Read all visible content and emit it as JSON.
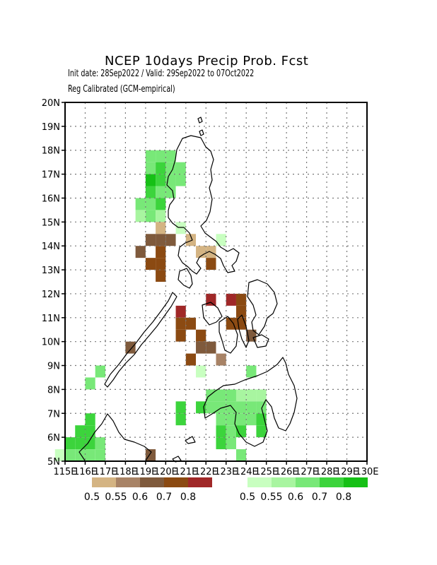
{
  "header": {
    "title": "NCEP 10days Precip Prob. Fcst",
    "line1": "Init date: 28Sep2022 / Valid: 29Sep2022 to 07Oct2022",
    "line2": "Reg Calibrated (GCM-empirical)"
  },
  "map": {
    "lon_range": [
      115,
      130
    ],
    "lat_range": [
      5,
      20
    ],
    "grid": true,
    "y_tick_labels": [
      "5N",
      "6N",
      "7N",
      "8N",
      "9N",
      "10N",
      "11N",
      "12N",
      "13N",
      "14N",
      "15N",
      "16N",
      "17N",
      "18N",
      "19N",
      "20N"
    ],
    "x_tick_labels": [
      "115E",
      "116E",
      "117E",
      "118E",
      "119E",
      "120E",
      "121E",
      "122E",
      "123E",
      "124E",
      "125E",
      "126E",
      "127E",
      "128E",
      "129E",
      "130E"
    ]
  },
  "legend": {
    "dry": {
      "labels": [
        "0.5",
        "0.55",
        "0.6",
        "0.7",
        "0.8"
      ],
      "colors": [
        "#d4b483",
        "#a88366",
        "#7f5a3c",
        "#8b4a12",
        "#a02828"
      ]
    },
    "wet": {
      "labels": [
        "0.5",
        "0.55",
        "0.6",
        "0.7",
        "0.8"
      ],
      "colors": [
        "#c8ffc0",
        "#a8f5a0",
        "#78e878",
        "#3cd43c",
        "#16c016"
      ]
    }
  },
  "chart_data": {
    "type": "heatmap",
    "cell_size_deg": 0.5,
    "note_units": "lon/lat cell centers in degrees; level 1-5 = probability class index",
    "cells": [
      {
        "lon": 119.25,
        "lat": 17.75,
        "cat": "wet",
        "level": 3
      },
      {
        "lon": 119.75,
        "lat": 17.75,
        "cat": "wet",
        "level": 3
      },
      {
        "lon": 120.25,
        "lat": 17.75,
        "cat": "wet",
        "level": 3
      },
      {
        "lon": 119.25,
        "lat": 17.25,
        "cat": "wet",
        "level": 3
      },
      {
        "lon": 119.75,
        "lat": 17.25,
        "cat": "wet",
        "level": 4
      },
      {
        "lon": 120.25,
        "lat": 17.25,
        "cat": "wet",
        "level": 3
      },
      {
        "lon": 120.75,
        "lat": 17.25,
        "cat": "wet",
        "level": 3
      },
      {
        "lon": 119.25,
        "lat": 16.75,
        "cat": "wet",
        "level": 5
      },
      {
        "lon": 119.75,
        "lat": 16.75,
        "cat": "wet",
        "level": 4
      },
      {
        "lon": 120.25,
        "lat": 16.75,
        "cat": "wet",
        "level": 3
      },
      {
        "lon": 120.75,
        "lat": 16.75,
        "cat": "wet",
        "level": 3
      },
      {
        "lon": 119.25,
        "lat": 16.25,
        "cat": "wet",
        "level": 4
      },
      {
        "lon": 119.75,
        "lat": 16.25,
        "cat": "wet",
        "level": 3
      },
      {
        "lon": 120.25,
        "lat": 16.25,
        "cat": "wet",
        "level": 3
      },
      {
        "lon": 118.75,
        "lat": 15.75,
        "cat": "wet",
        "level": 3
      },
      {
        "lon": 119.25,
        "lat": 15.75,
        "cat": "wet",
        "level": 3
      },
      {
        "lon": 119.75,
        "lat": 15.75,
        "cat": "wet",
        "level": 4
      },
      {
        "lon": 118.75,
        "lat": 15.25,
        "cat": "wet",
        "level": 2
      },
      {
        "lon": 119.25,
        "lat": 15.25,
        "cat": "wet",
        "level": 3
      },
      {
        "lon": 119.75,
        "lat": 15.25,
        "cat": "wet",
        "level": 2
      },
      {
        "lon": 119.75,
        "lat": 14.75,
        "cat": "dry",
        "level": 1
      },
      {
        "lon": 120.75,
        "lat": 14.75,
        "cat": "wet",
        "level": 1
      },
      {
        "lon": 119.25,
        "lat": 14.25,
        "cat": "dry",
        "level": 3
      },
      {
        "lon": 119.75,
        "lat": 14.25,
        "cat": "dry",
        "level": 3
      },
      {
        "lon": 120.25,
        "lat": 14.25,
        "cat": "dry",
        "level": 3
      },
      {
        "lon": 121.25,
        "lat": 14.25,
        "cat": "dry",
        "level": 1
      },
      {
        "lon": 122.75,
        "lat": 14.25,
        "cat": "wet",
        "level": 1
      },
      {
        "lon": 118.75,
        "lat": 13.75,
        "cat": "dry",
        "level": 3
      },
      {
        "lon": 119.75,
        "lat": 13.75,
        "cat": "dry",
        "level": 4
      },
      {
        "lon": 121.75,
        "lat": 13.75,
        "cat": "dry",
        "level": 1
      },
      {
        "lon": 122.25,
        "lat": 13.75,
        "cat": "dry",
        "level": 1
      },
      {
        "lon": 119.25,
        "lat": 13.25,
        "cat": "dry",
        "level": 4
      },
      {
        "lon": 119.75,
        "lat": 13.25,
        "cat": "dry",
        "level": 4
      },
      {
        "lon": 122.25,
        "lat": 13.25,
        "cat": "dry",
        "level": 4
      },
      {
        "lon": 119.75,
        "lat": 12.75,
        "cat": "dry",
        "level": 4
      },
      {
        "lon": 122.25,
        "lat": 11.75,
        "cat": "dry",
        "level": 5
      },
      {
        "lon": 123.25,
        "lat": 11.75,
        "cat": "dry",
        "level": 5
      },
      {
        "lon": 123.75,
        "lat": 11.75,
        "cat": "dry",
        "level": 4
      },
      {
        "lon": 120.75,
        "lat": 11.25,
        "cat": "dry",
        "level": 5
      },
      {
        "lon": 123.75,
        "lat": 11.25,
        "cat": "dry",
        "level": 4
      },
      {
        "lon": 120.75,
        "lat": 10.75,
        "cat": "dry",
        "level": 4
      },
      {
        "lon": 121.25,
        "lat": 10.75,
        "cat": "dry",
        "level": 4
      },
      {
        "lon": 123.25,
        "lat": 10.75,
        "cat": "dry",
        "level": 4
      },
      {
        "lon": 123.75,
        "lat": 10.75,
        "cat": "dry",
        "level": 4
      },
      {
        "lon": 120.75,
        "lat": 10.25,
        "cat": "dry",
        "level": 4
      },
      {
        "lon": 121.75,
        "lat": 10.25,
        "cat": "dry",
        "level": 4
      },
      {
        "lon": 124.25,
        "lat": 10.25,
        "cat": "dry",
        "level": 3
      },
      {
        "lon": 121.75,
        "lat": 9.75,
        "cat": "dry",
        "level": 3
      },
      {
        "lon": 122.25,
        "lat": 9.75,
        "cat": "dry",
        "level": 3
      },
      {
        "lon": 118.25,
        "lat": 9.75,
        "cat": "dry",
        "level": 3
      },
      {
        "lon": 121.25,
        "lat": 9.25,
        "cat": "dry",
        "level": 4
      },
      {
        "lon": 122.75,
        "lat": 9.25,
        "cat": "dry",
        "level": 2
      },
      {
        "lon": 121.75,
        "lat": 8.75,
        "cat": "wet",
        "level": 1
      },
      {
        "lon": 124.25,
        "lat": 8.75,
        "cat": "wet",
        "level": 3
      },
      {
        "lon": 116.75,
        "lat": 8.75,
        "cat": "wet",
        "level": 3
      },
      {
        "lon": 116.25,
        "lat": 8.25,
        "cat": "wet",
        "level": 3
      },
      {
        "lon": 122.25,
        "lat": 7.75,
        "cat": "wet",
        "level": 3
      },
      {
        "lon": 122.75,
        "lat": 7.75,
        "cat": "wet",
        "level": 3
      },
      {
        "lon": 123.25,
        "lat": 7.75,
        "cat": "wet",
        "level": 3
      },
      {
        "lon": 123.75,
        "lat": 7.75,
        "cat": "wet",
        "level": 2
      },
      {
        "lon": 124.25,
        "lat": 7.75,
        "cat": "wet",
        "level": 2
      },
      {
        "lon": 124.75,
        "lat": 7.75,
        "cat": "wet",
        "level": 2
      },
      {
        "lon": 120.75,
        "lat": 7.25,
        "cat": "wet",
        "level": 4
      },
      {
        "lon": 121.75,
        "lat": 7.25,
        "cat": "wet",
        "level": 4
      },
      {
        "lon": 122.25,
        "lat": 7.25,
        "cat": "wet",
        "level": 3
      },
      {
        "lon": 122.75,
        "lat": 7.25,
        "cat": "wet",
        "level": 3
      },
      {
        "lon": 123.25,
        "lat": 7.25,
        "cat": "wet",
        "level": 3
      },
      {
        "lon": 123.75,
        "lat": 7.25,
        "cat": "wet",
        "level": 3
      },
      {
        "lon": 124.25,
        "lat": 7.25,
        "cat": "wet",
        "level": 3
      },
      {
        "lon": 124.75,
        "lat": 7.25,
        "cat": "wet",
        "level": 3
      },
      {
        "lon": 116.25,
        "lat": 6.75,
        "cat": "wet",
        "level": 4
      },
      {
        "lon": 120.75,
        "lat": 6.75,
        "cat": "wet",
        "level": 4
      },
      {
        "lon": 122.75,
        "lat": 6.75,
        "cat": "wet",
        "level": 3
      },
      {
        "lon": 123.25,
        "lat": 6.75,
        "cat": "wet",
        "level": 3
      },
      {
        "lon": 123.75,
        "lat": 6.75,
        "cat": "wet",
        "level": 3
      },
      {
        "lon": 124.25,
        "lat": 6.75,
        "cat": "wet",
        "level": 3
      },
      {
        "lon": 124.75,
        "lat": 6.75,
        "cat": "wet",
        "level": 4
      },
      {
        "lon": 115.75,
        "lat": 6.25,
        "cat": "wet",
        "level": 4
      },
      {
        "lon": 116.25,
        "lat": 6.25,
        "cat": "wet",
        "level": 4
      },
      {
        "lon": 122.75,
        "lat": 6.25,
        "cat": "wet",
        "level": 4
      },
      {
        "lon": 123.25,
        "lat": 6.25,
        "cat": "wet",
        "level": 3
      },
      {
        "lon": 123.75,
        "lat": 6.25,
        "cat": "wet",
        "level": 4
      },
      {
        "lon": 124.75,
        "lat": 6.25,
        "cat": "wet",
        "level": 4
      },
      {
        "lon": 115.25,
        "lat": 5.75,
        "cat": "wet",
        "level": 4
      },
      {
        "lon": 115.75,
        "lat": 5.75,
        "cat": "wet",
        "level": 4
      },
      {
        "lon": 116.25,
        "lat": 5.75,
        "cat": "wet",
        "level": 4
      },
      {
        "lon": 116.75,
        "lat": 5.75,
        "cat": "wet",
        "level": 3
      },
      {
        "lon": 122.75,
        "lat": 5.75,
        "cat": "wet",
        "level": 4
      },
      {
        "lon": 123.25,
        "lat": 5.75,
        "cat": "wet",
        "level": 3
      },
      {
        "lon": 115.25,
        "lat": 5.25,
        "cat": "wet",
        "level": 3
      },
      {
        "lon": 115.75,
        "lat": 5.25,
        "cat": "wet",
        "level": 3
      },
      {
        "lon": 116.25,
        "lat": 5.25,
        "cat": "wet",
        "level": 3
      },
      {
        "lon": 116.75,
        "lat": 5.25,
        "cat": "wet",
        "level": 3
      },
      {
        "lon": 123.75,
        "lat": 5.25,
        "cat": "wet",
        "level": 3
      },
      {
        "lon": 114.75,
        "lat": 5.25,
        "cat": "wet",
        "level": 1
      },
      {
        "lon": 119.25,
        "lat": 5.25,
        "cat": "dry",
        "level": 3
      }
    ]
  }
}
